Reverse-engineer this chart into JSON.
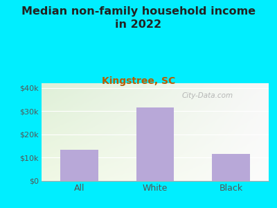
{
  "title": "Median non-family household income\nin 2022",
  "subtitle": "Kingstree, SC",
  "categories": [
    "All",
    "White",
    "Black"
  ],
  "values": [
    13500,
    31500,
    11500
  ],
  "bar_color": "#b8a8d8",
  "title_fontsize": 11.5,
  "subtitle_fontsize": 10,
  "subtitle_color": "#b85c00",
  "title_color": "#222222",
  "background_color": "#00eeff",
  "yticks": [
    0,
    10000,
    20000,
    30000,
    40000
  ],
  "ytick_labels": [
    "$0",
    "$10k",
    "$20k",
    "$30k",
    "$40k"
  ],
  "ylim": [
    0,
    42000
  ],
  "tick_color": "#555555",
  "watermark": "City-Data.com",
  "grid_color": "#cccccc"
}
